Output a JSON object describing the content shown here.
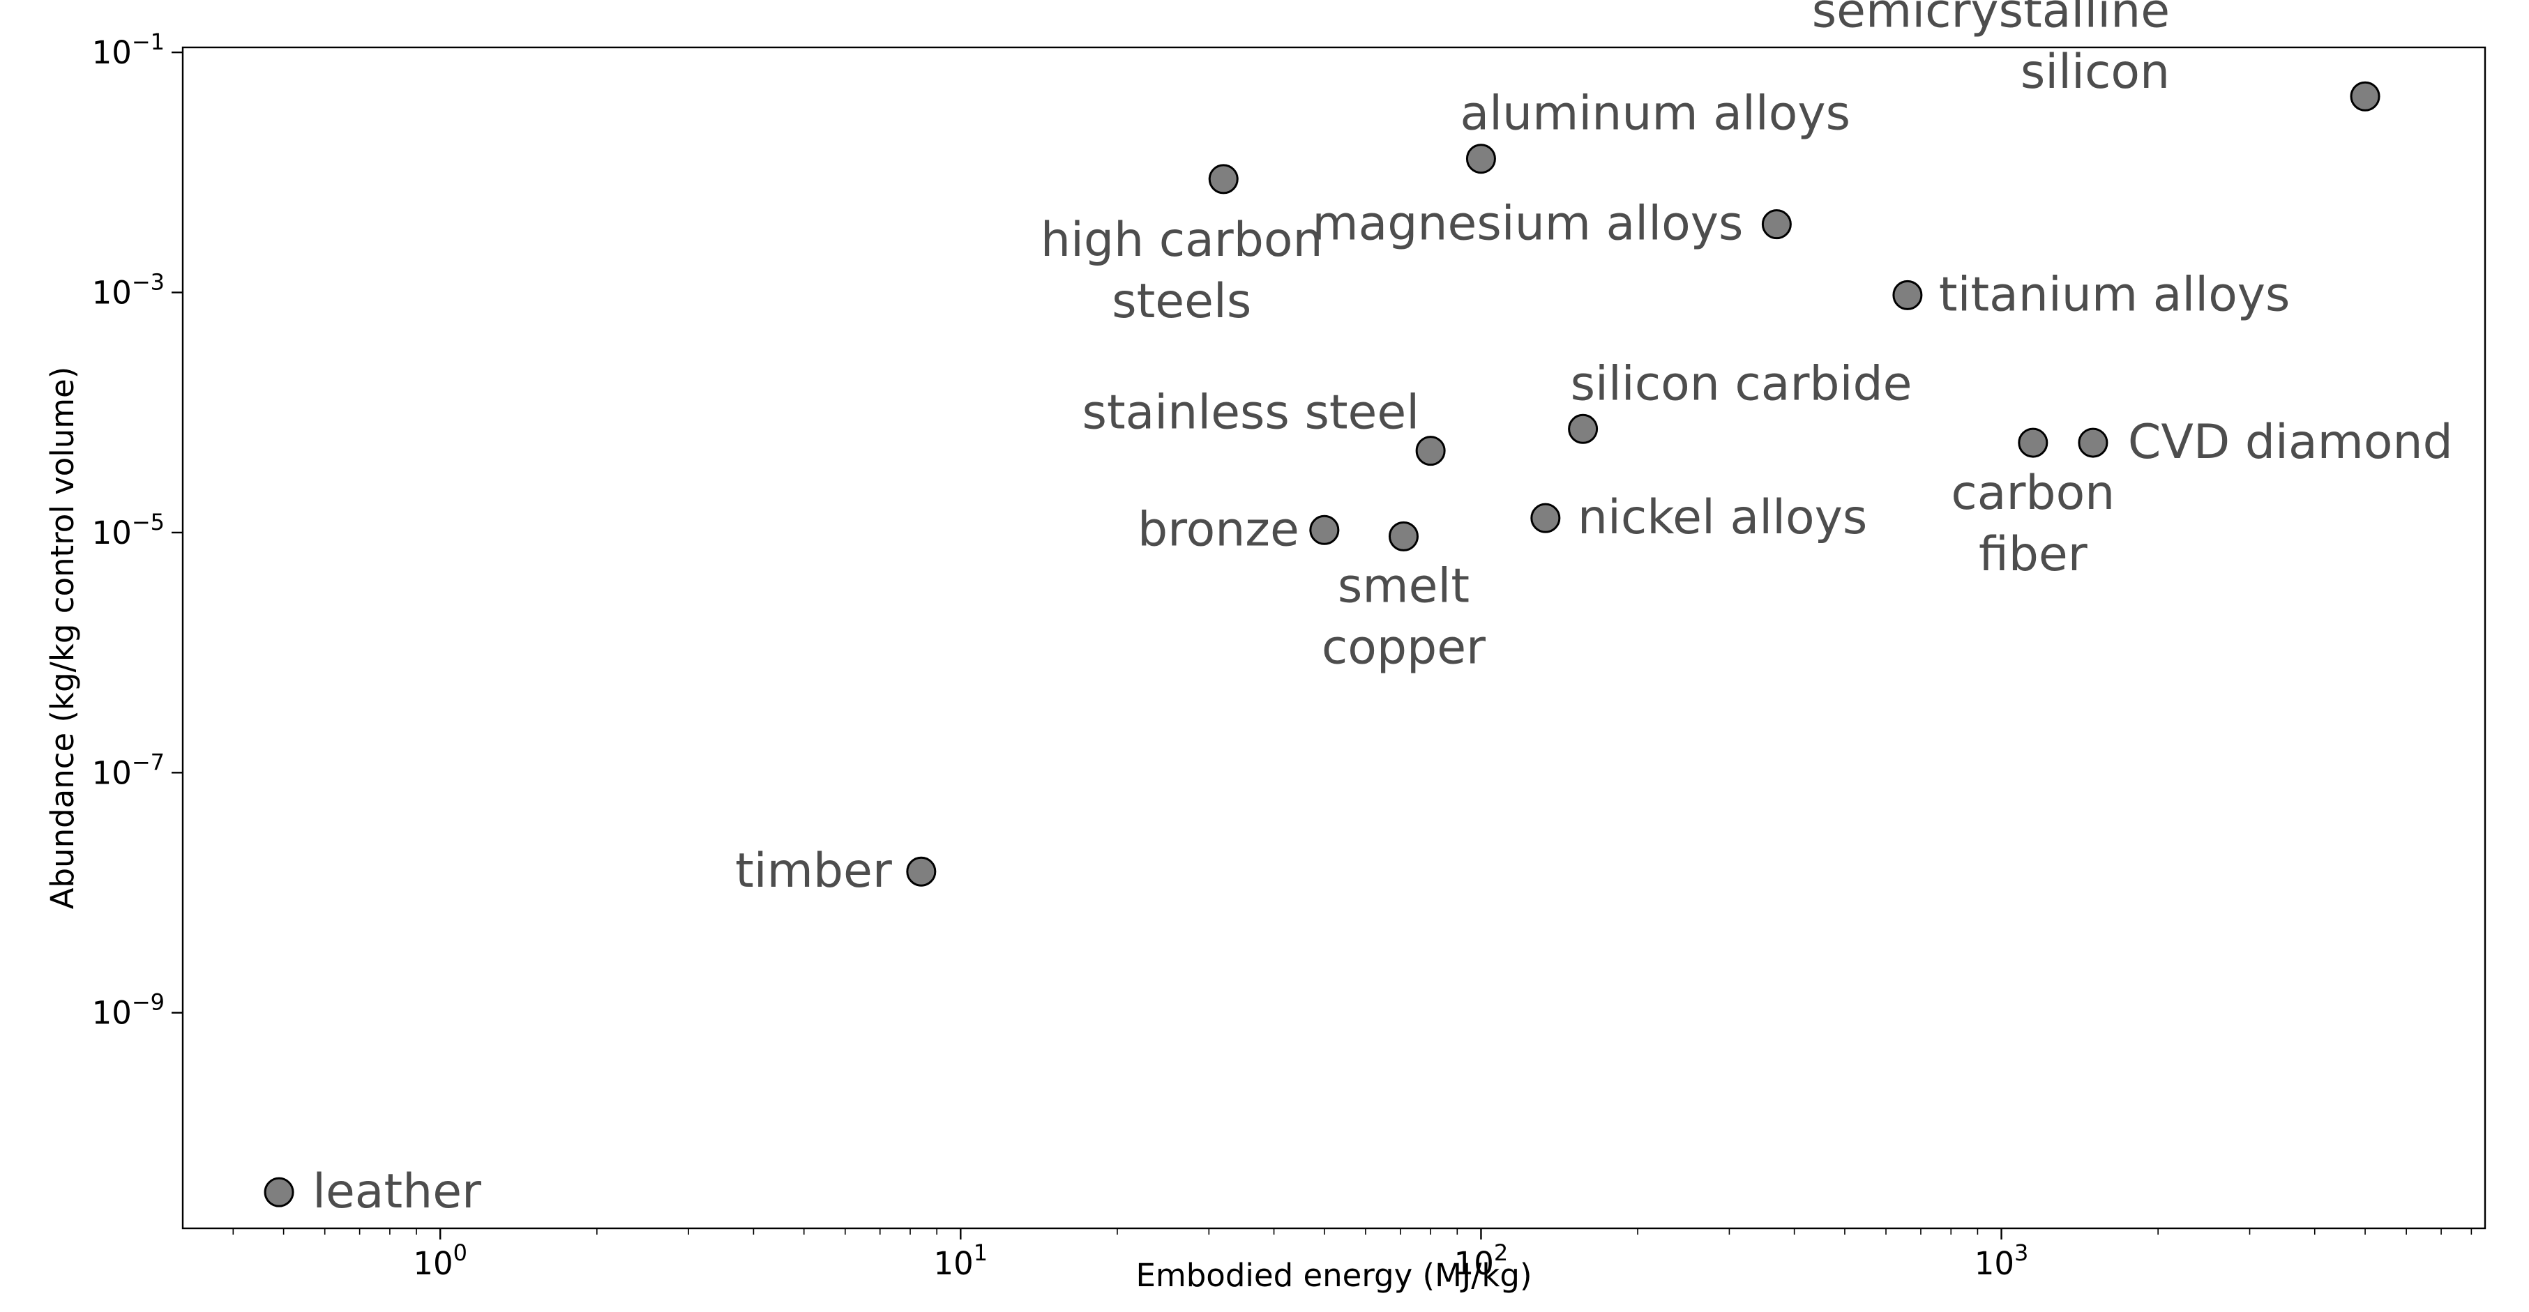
{
  "chart_data": {
    "type": "scatter",
    "xlabel": "Embodied energy (MJ/kg)",
    "ylabel": "Abundance (kg/kg control volume)",
    "xscale": "log",
    "yscale": "log",
    "xlim": [
      0.32,
      8500
    ],
    "ylim": [
      1.6e-11,
      0.11
    ],
    "grid": false,
    "x_ticks": [
      {
        "value": 1,
        "base": "10",
        "exp": "0"
      },
      {
        "value": 10,
        "base": "10",
        "exp": "1"
      },
      {
        "value": 100,
        "base": "10",
        "exp": "2"
      },
      {
        "value": 1000,
        "base": "10",
        "exp": "3"
      }
    ],
    "y_ticks": [
      {
        "value": 0.1,
        "base": "10",
        "exp": "−1"
      },
      {
        "value": 0.001,
        "base": "10",
        "exp": "−3"
      },
      {
        "value": 1e-05,
        "base": "10",
        "exp": "−5"
      },
      {
        "value": 1e-07,
        "base": "10",
        "exp": "−7"
      },
      {
        "value": 1e-09,
        "base": "10",
        "exp": "−9"
      }
    ],
    "colors": {
      "marker": "#7f7f7f",
      "marker_edge": "#000000",
      "label": "#4d4d4d"
    },
    "points": [
      {
        "label": [
          "leather"
        ],
        "x": 0.49,
        "y": 3.2e-11,
        "anchor": "start"
      },
      {
        "label": [
          "timber"
        ],
        "x": 8.4,
        "y": 1.5e-08,
        "anchor": "end"
      },
      {
        "label": [
          "high carbon",
          "steels"
        ],
        "x": 32,
        "y": 0.0088,
        "anchor": "middle"
      },
      {
        "label": [
          "aluminum alloys"
        ],
        "x": 100,
        "y": 0.013,
        "anchor": "start"
      },
      {
        "label": [
          "magnesium alloys"
        ],
        "x": 370,
        "y": 0.0037,
        "anchor": "end"
      },
      {
        "label": [
          "semicrystalline",
          "silicon"
        ],
        "x": 5000,
        "y": 0.043,
        "anchor": "end"
      },
      {
        "label": [
          "titanium alloys"
        ],
        "x": 660,
        "y": 0.00095,
        "anchor": "start"
      },
      {
        "label": [
          "stainless steel"
        ],
        "x": 80,
        "y": 4.8e-05,
        "anchor": "end"
      },
      {
        "label": [
          "silicon carbide"
        ],
        "x": 157,
        "y": 7.3e-05,
        "anchor": "start"
      },
      {
        "label": [
          "carbon",
          "fiber"
        ],
        "x": 1150,
        "y": 5.6e-05,
        "anchor": "middle"
      },
      {
        "label": [
          "CVD diamond"
        ],
        "x": 1500,
        "y": 5.6e-05,
        "anchor": "start"
      },
      {
        "label": [
          "bronze"
        ],
        "x": 50,
        "y": 1.05e-05,
        "anchor": "end"
      },
      {
        "label": [
          "smelt",
          "copper"
        ],
        "x": 71,
        "y": 9.3e-06,
        "anchor": "middle"
      },
      {
        "label": [
          "nickel alloys"
        ],
        "x": 133,
        "y": 1.32e-05,
        "anchor": "start"
      }
    ]
  }
}
